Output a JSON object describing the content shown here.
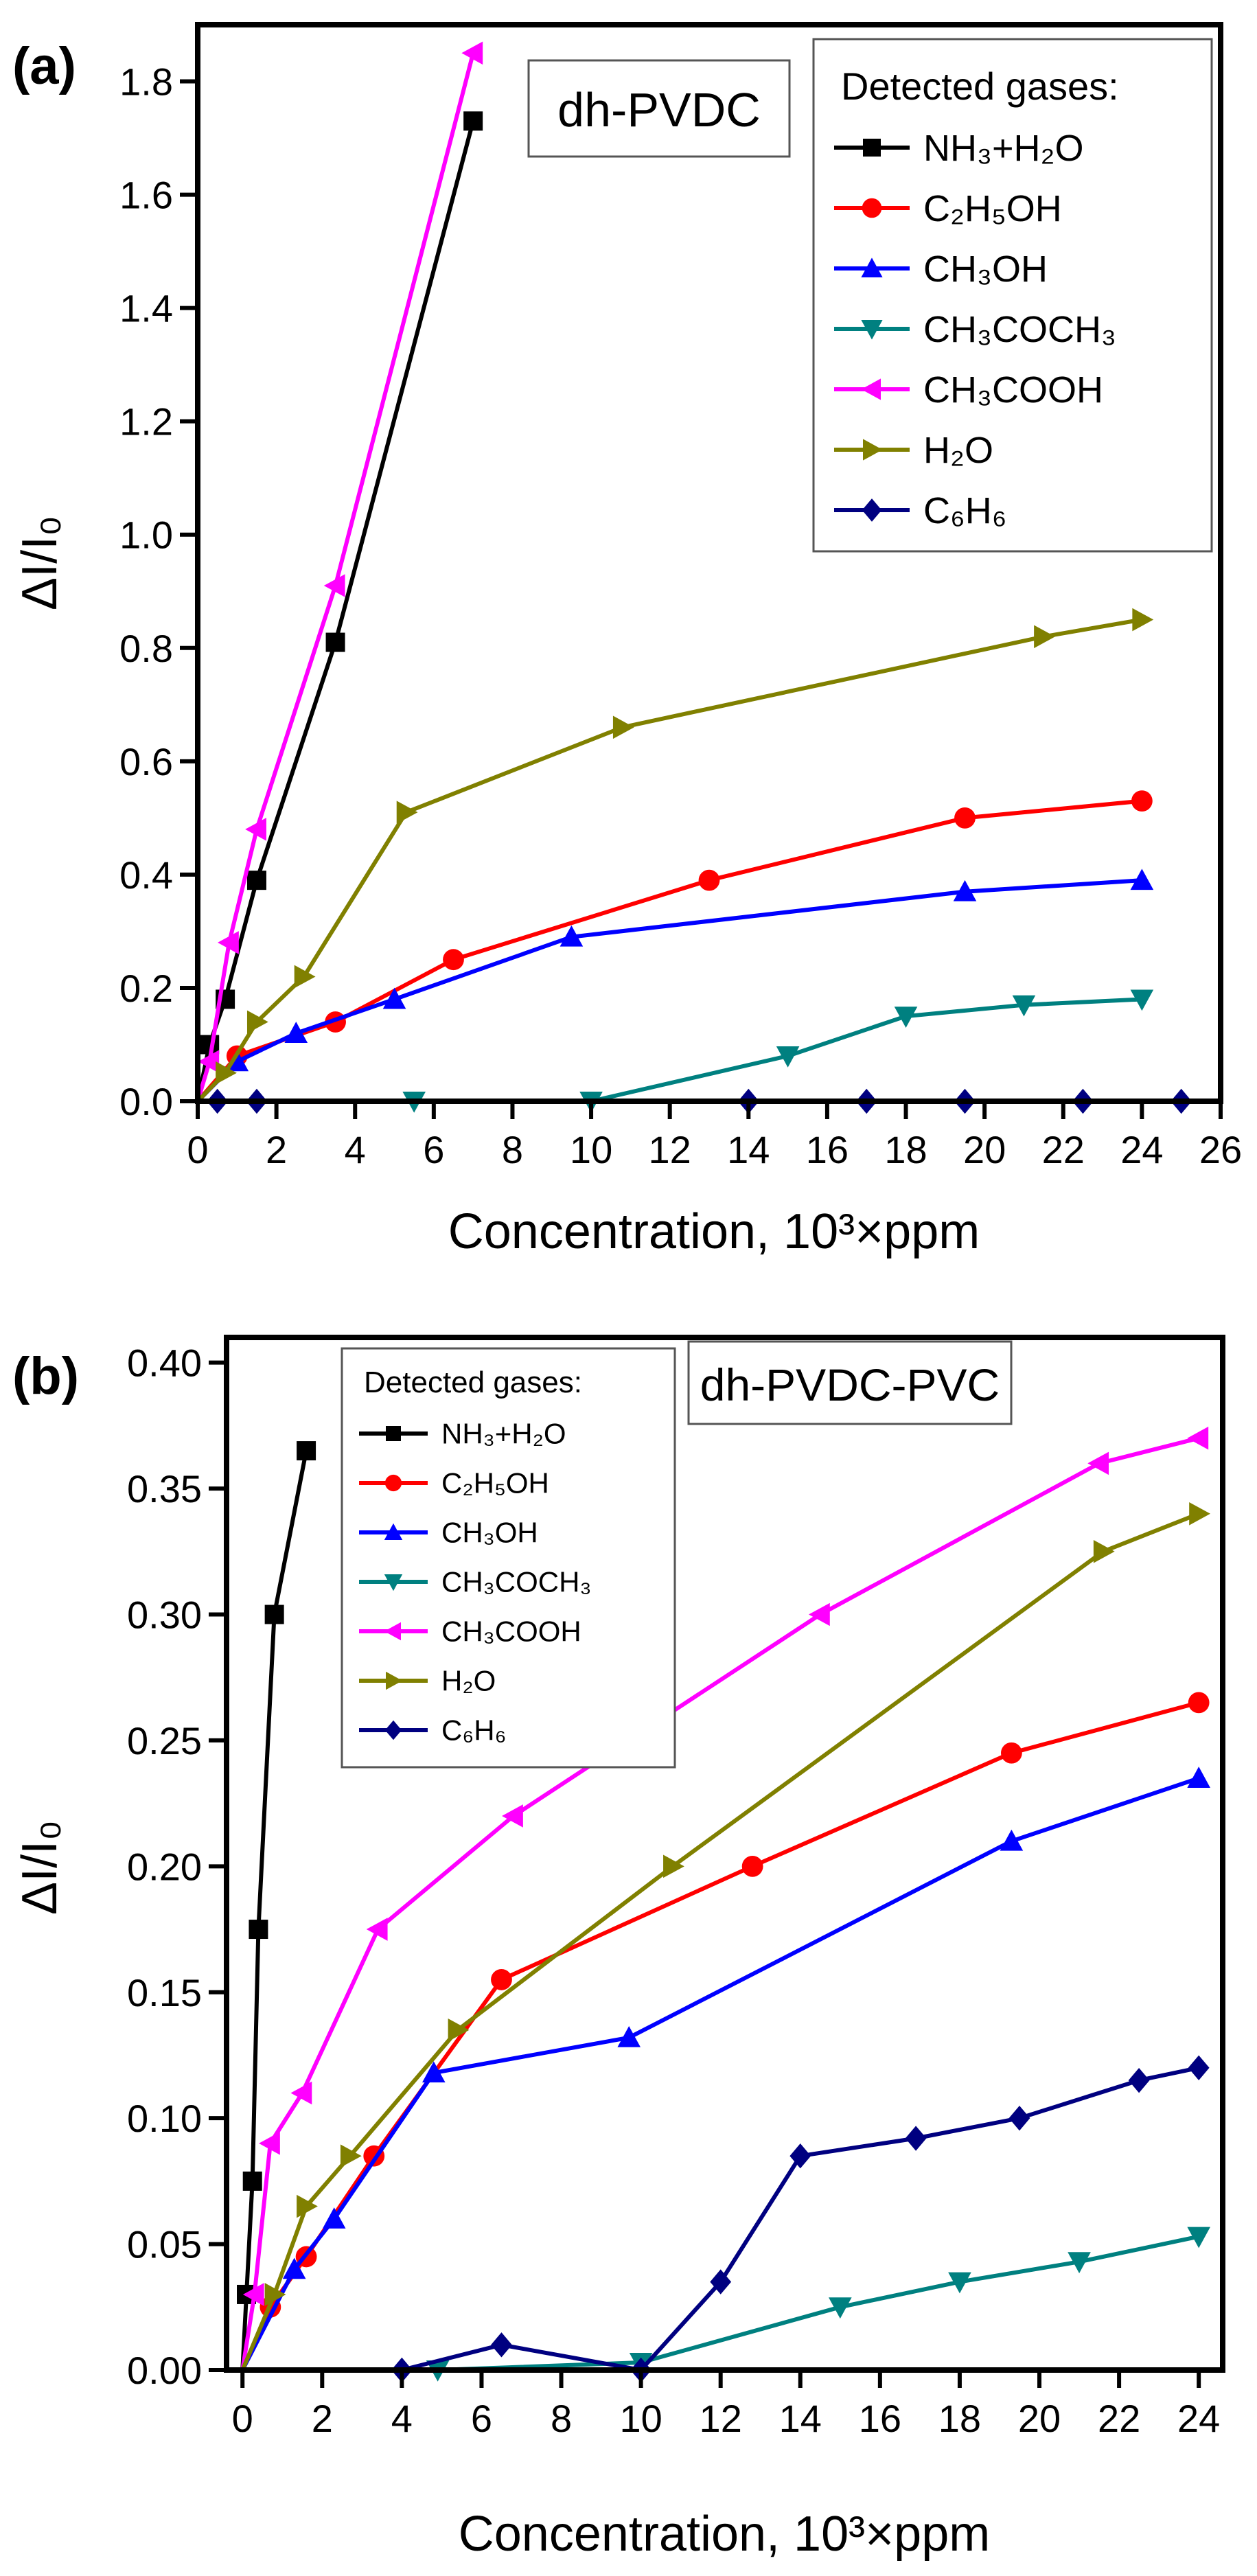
{
  "chart_data": [
    {
      "type": "line",
      "panel_label": "(a)",
      "title": "dh-PVDC",
      "xlabel": "Concentration, 10³×ppm",
      "ylabel": "ΔI/I₀",
      "xlim": [
        0,
        26
      ],
      "ylim": [
        0,
        1.9
      ],
      "xticks": [
        "0",
        "2",
        "4",
        "6",
        "8",
        "10",
        "12",
        "14",
        "16",
        "18",
        "20",
        "22",
        "24",
        "26"
      ],
      "yticks": [
        "0.0",
        "0.2",
        "0.4",
        "0.6",
        "0.8",
        "1.0",
        "1.2",
        "1.4",
        "1.6",
        "1.8"
      ],
      "legend": {
        "title": "Detected gases:",
        "position": "top-right"
      },
      "series": [
        {
          "name": "NH₃+H₂O",
          "color": "#000000",
          "marker": "square",
          "points": [
            [
              0,
              0
            ],
            [
              0.3,
              0.1
            ],
            [
              0.7,
              0.18
            ],
            [
              1.5,
              0.39
            ],
            [
              3.5,
              0.81
            ],
            [
              7,
              1.73
            ]
          ]
        },
        {
          "name": "C₂H₅OH",
          "color": "#ff0000",
          "marker": "circle",
          "points": [
            [
              0,
              0
            ],
            [
              1,
              0.08
            ],
            [
              3.5,
              0.14
            ],
            [
              6.5,
              0.25
            ],
            [
              13,
              0.39
            ],
            [
              19.5,
              0.5
            ],
            [
              24,
              0.53
            ]
          ]
        },
        {
          "name": "CH₃OH",
          "color": "#0000ff",
          "marker": "triangle-up",
          "points": [
            [
              0,
              0
            ],
            [
              1,
              0.07
            ],
            [
              2.5,
              0.12
            ],
            [
              5,
              0.18
            ],
            [
              9.5,
              0.29
            ],
            [
              19.5,
              0.37
            ],
            [
              24,
              0.39
            ]
          ]
        },
        {
          "name": "CH₃COCH₃",
          "color": "#008080",
          "marker": "triangle-down",
          "points": [
            [
              0,
              0
            ],
            [
              5.5,
              0
            ],
            [
              10,
              0
            ],
            [
              15,
              0.08
            ],
            [
              18,
              0.15
            ],
            [
              21,
              0.17
            ],
            [
              24,
              0.18
            ]
          ]
        },
        {
          "name": "CH₃COOH",
          "color": "#ff00ff",
          "marker": "triangle-left",
          "points": [
            [
              0,
              0
            ],
            [
              0.3,
              0.07
            ],
            [
              0.8,
              0.28
            ],
            [
              1.5,
              0.48
            ],
            [
              3.5,
              0.91
            ],
            [
              7,
              1.85
            ]
          ]
        },
        {
          "name": "H₂O",
          "color": "#808000",
          "marker": "triangle-right",
          "points": [
            [
              0,
              0
            ],
            [
              0.7,
              0.05
            ],
            [
              1.5,
              0.14
            ],
            [
              2.7,
              0.22
            ],
            [
              5.3,
              0.51
            ],
            [
              10.8,
              0.66
            ],
            [
              21.5,
              0.82
            ],
            [
              24,
              0.85
            ]
          ]
        },
        {
          "name": "C₆H₆",
          "color": "#000080",
          "marker": "diamond",
          "points": [
            [
              0,
              0
            ],
            [
              0.5,
              0
            ],
            [
              1.5,
              0
            ],
            [
              14,
              0
            ],
            [
              17,
              0
            ],
            [
              19.5,
              0
            ],
            [
              22.5,
              0
            ],
            [
              25,
              0
            ]
          ]
        }
      ]
    },
    {
      "type": "line",
      "panel_label": "(b)",
      "title": "dh-PVDC-PVC",
      "xlabel": "Concentration, 10³×ppm",
      "ylabel": "ΔI/I₀",
      "xlim": [
        -0.4,
        24.6
      ],
      "ylim": [
        0,
        0.41
      ],
      "xticks": [
        "0",
        "2",
        "4",
        "6",
        "8",
        "10",
        "12",
        "14",
        "16",
        "18",
        "20",
        "22",
        "24"
      ],
      "yticks": [
        "0.00",
        "0.05",
        "0.10",
        "0.15",
        "0.20",
        "0.25",
        "0.30",
        "0.35",
        "0.40"
      ],
      "legend": {
        "title": "Detected gases:",
        "position": "top-left"
      },
      "series": [
        {
          "name": "NH₃+H₂O",
          "color": "#000000",
          "marker": "square",
          "points": [
            [
              0,
              0
            ],
            [
              0.1,
              0.03
            ],
            [
              0.25,
              0.075
            ],
            [
              0.4,
              0.175
            ],
            [
              0.8,
              0.3
            ],
            [
              1.6,
              0.365
            ]
          ]
        },
        {
          "name": "C₂H₅OH",
          "color": "#ff0000",
          "marker": "circle",
          "points": [
            [
              0,
              0
            ],
            [
              0.7,
              0.025
            ],
            [
              1.6,
              0.045
            ],
            [
              3.3,
              0.085
            ],
            [
              6.5,
              0.155
            ],
            [
              12.8,
              0.2
            ],
            [
              19.3,
              0.245
            ],
            [
              24,
              0.265
            ]
          ]
        },
        {
          "name": "CH₃OH",
          "color": "#0000ff",
          "marker": "triangle-up",
          "points": [
            [
              0,
              0
            ],
            [
              1.3,
              0.04
            ],
            [
              2.3,
              0.06
            ],
            [
              4.8,
              0.118
            ],
            [
              9.7,
              0.132
            ],
            [
              19.3,
              0.21
            ],
            [
              24,
              0.235
            ]
          ]
        },
        {
          "name": "CH₃COCH₃",
          "color": "#008080",
          "marker": "triangle-down",
          "points": [
            [
              0,
              0
            ],
            [
              4.9,
              0
            ],
            [
              10,
              0.003
            ],
            [
              15,
              0.025
            ],
            [
              18,
              0.035
            ],
            [
              21,
              0.043
            ],
            [
              24,
              0.053
            ]
          ]
        },
        {
          "name": "CH₃COOH",
          "color": "#ff00ff",
          "marker": "triangle-left",
          "points": [
            [
              0,
              0
            ],
            [
              0.3,
              0.03
            ],
            [
              0.7,
              0.09
            ],
            [
              1.5,
              0.11
            ],
            [
              3.4,
              0.175
            ],
            [
              6.8,
              0.22
            ],
            [
              14.5,
              0.3
            ],
            [
              21.5,
              0.36
            ],
            [
              24,
              0.37
            ]
          ]
        },
        {
          "name": "H₂O",
          "color": "#808000",
          "marker": "triangle-right",
          "points": [
            [
              0,
              0
            ],
            [
              0.8,
              0.03
            ],
            [
              1.6,
              0.065
            ],
            [
              2.7,
              0.085
            ],
            [
              5.4,
              0.135
            ],
            [
              10.8,
              0.2
            ],
            [
              21.6,
              0.325
            ],
            [
              24,
              0.34
            ]
          ]
        },
        {
          "name": "C₆H₆",
          "color": "#000080",
          "marker": "diamond",
          "points": [
            [
              0,
              0
            ],
            [
              4,
              0
            ],
            [
              6.5,
              0.01
            ],
            [
              10,
              0
            ],
            [
              12,
              0.035
            ],
            [
              14,
              0.085
            ],
            [
              16.9,
              0.092
            ],
            [
              19.5,
              0.1
            ],
            [
              22.5,
              0.115
            ],
            [
              24,
              0.12
            ]
          ]
        }
      ]
    }
  ]
}
